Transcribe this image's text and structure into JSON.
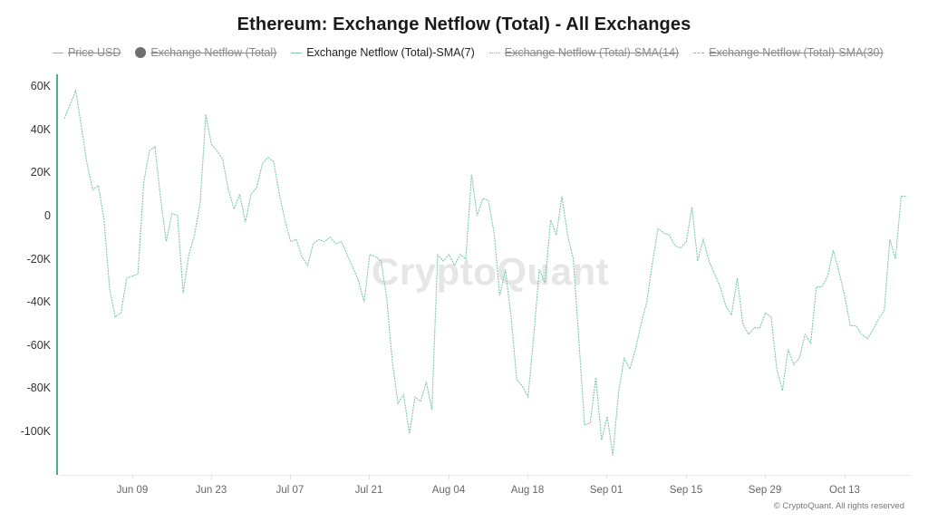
{
  "title": "Ethereum: Exchange Netflow (Total) - All Exchanges",
  "legend": [
    {
      "label": "Price USD",
      "state": "hidden",
      "marker": "line"
    },
    {
      "label": "Exchange Netflow (Total)",
      "state": "hidden",
      "marker": "dot"
    },
    {
      "label": "Exchange Netflow (Total)-SMA(7)",
      "state": "visible",
      "marker": "line",
      "color": "#7cc7ad"
    },
    {
      "label": "Exchange Netflow (Total)-SMA(14)",
      "state": "hidden",
      "marker": "dotted"
    },
    {
      "label": "Exchange Netflow (Total)-SMA(30)",
      "state": "hidden",
      "marker": "dashed"
    }
  ],
  "y_axis": {
    "ticks": [
      "60K",
      "40K",
      "20K",
      "0",
      "-20K",
      "-40K",
      "-60K",
      "-80K",
      "-100K"
    ]
  },
  "x_axis": {
    "ticks": [
      "Jun 09",
      "Jun 23",
      "Jul 07",
      "Jul 21",
      "Aug 04",
      "Aug 18",
      "Sep 01",
      "Sep 15",
      "Sep 29",
      "Oct 13"
    ]
  },
  "watermark": "CryptoQuant",
  "copyright": "© CryptoQuant. All rights reserved",
  "colors": {
    "series": "#7cc7ad",
    "axis": "#4caf8c"
  },
  "chart_data": {
    "type": "line",
    "title": "Ethereum: Exchange Netflow (Total) - All Exchanges",
    "xlabel": "",
    "ylabel": "",
    "ylim": [
      -120000,
      65000
    ],
    "grid": false,
    "legend_position": "top",
    "x_tick_labels": [
      "Jun 09",
      "Jun 23",
      "Jul 07",
      "Jul 21",
      "Aug 04",
      "Aug 18",
      "Sep 01",
      "Sep 15",
      "Sep 29",
      "Oct 13"
    ],
    "series": [
      {
        "name": "Exchange Netflow (Total)-SMA(7)",
        "color": "#7cc7ad",
        "points": [
          [
            "May 28",
            45000
          ],
          [
            "May 30",
            58000
          ],
          [
            "Jun 01",
            24000
          ],
          [
            "Jun 02",
            12000
          ],
          [
            "Jun 03",
            14000
          ],
          [
            "Jun 04",
            -2000
          ],
          [
            "Jun 05",
            -34000
          ],
          [
            "Jun 06",
            -47000
          ],
          [
            "Jun 07",
            -45000
          ],
          [
            "Jun 08",
            -29000
          ],
          [
            "Jun 10",
            -27000
          ],
          [
            "Jun 11",
            15000
          ],
          [
            "Jun 12",
            30000
          ],
          [
            "Jun 13",
            32000
          ],
          [
            "Jun 14",
            8000
          ],
          [
            "Jun 15",
            -12000
          ],
          [
            "Jun 16",
            1000
          ],
          [
            "Jun 17",
            0
          ],
          [
            "Jun 18",
            -36000
          ],
          [
            "Jun 19",
            -18000
          ],
          [
            "Jun 20",
            -9000
          ],
          [
            "Jun 21",
            6000
          ],
          [
            "Jun 22",
            47000
          ],
          [
            "Jun 23",
            33000
          ],
          [
            "Jun 24",
            30000
          ],
          [
            "Jun 25",
            26000
          ],
          [
            "Jun 26",
            12000
          ],
          [
            "Jun 27",
            3000
          ],
          [
            "Jun 28",
            10000
          ],
          [
            "Jun 29",
            -3000
          ],
          [
            "Jun 30",
            10000
          ],
          [
            "Jul 01",
            13000
          ],
          [
            "Jul 02",
            24000
          ],
          [
            "Jul 03",
            27000
          ],
          [
            "Jul 04",
            25000
          ],
          [
            "Jul 05",
            10000
          ],
          [
            "Jul 06",
            -2000
          ],
          [
            "Jul 07",
            -12000
          ],
          [
            "Jul 08",
            -11000
          ],
          [
            "Jul 09",
            -19000
          ],
          [
            "Jul 10",
            -23000
          ],
          [
            "Jul 11",
            -13000
          ],
          [
            "Jul 12",
            -11000
          ],
          [
            "Jul 13",
            -12000
          ],
          [
            "Jul 14",
            -10000
          ],
          [
            "Jul 15",
            -13000
          ],
          [
            "Jul 16",
            -12000
          ],
          [
            "Jul 17",
            -18000
          ],
          [
            "Jul 18",
            -24000
          ],
          [
            "Jul 19",
            -30000
          ],
          [
            "Jul 20",
            -40000
          ],
          [
            "Jul 21",
            -18000
          ],
          [
            "Jul 22",
            -19000
          ],
          [
            "Jul 23",
            -21000
          ],
          [
            "Jul 24",
            -38000
          ],
          [
            "Jul 25",
            -68000
          ],
          [
            "Jul 26",
            -87000
          ],
          [
            "Jul 27",
            -83000
          ],
          [
            "Jul 28",
            -101000
          ],
          [
            "Jul 29",
            -84000
          ],
          [
            "Jul 30",
            -86000
          ],
          [
            "Jul 31",
            -77000
          ],
          [
            "Aug 01",
            -90000
          ],
          [
            "Aug 02",
            -18000
          ],
          [
            "Aug 03",
            -21000
          ],
          [
            "Aug 04",
            -18000
          ],
          [
            "Aug 05",
            -23000
          ],
          [
            "Aug 06",
            -18000
          ],
          [
            "Aug 07",
            -20000
          ],
          [
            "Aug 08",
            19000
          ],
          [
            "Aug 09",
            0
          ],
          [
            "Aug 10",
            8000
          ],
          [
            "Aug 11",
            7000
          ],
          [
            "Aug 12",
            -8000
          ],
          [
            "Aug 13",
            -37000
          ],
          [
            "Aug 14",
            -25000
          ],
          [
            "Aug 15",
            -47000
          ],
          [
            "Aug 16",
            -76000
          ],
          [
            "Aug 17",
            -79000
          ],
          [
            "Aug 18",
            -84000
          ],
          [
            "Aug 19",
            -56000
          ],
          [
            "Aug 20",
            -25000
          ],
          [
            "Aug 21",
            -31000
          ],
          [
            "Aug 22",
            -2000
          ],
          [
            "Aug 23",
            -9000
          ],
          [
            "Aug 24",
            9000
          ],
          [
            "Aug 25",
            -9000
          ],
          [
            "Aug 26",
            -20000
          ],
          [
            "Aug 27",
            -58000
          ],
          [
            "Aug 28",
            -97000
          ],
          [
            "Aug 29",
            -96000
          ],
          [
            "Aug 30",
            -75000
          ],
          [
            "Aug 31",
            -104000
          ],
          [
            "Sep 01",
            -93000
          ],
          [
            "Sep 02",
            -111000
          ],
          [
            "Sep 03",
            -82000
          ],
          [
            "Sep 04",
            -66000
          ],
          [
            "Sep 05",
            -71000
          ],
          [
            "Sep 06",
            -62000
          ],
          [
            "Sep 07",
            -50000
          ],
          [
            "Sep 08",
            -40000
          ],
          [
            "Sep 09",
            -22000
          ],
          [
            "Sep 10",
            -6000
          ],
          [
            "Sep 11",
            -8000
          ],
          [
            "Sep 12",
            -9000
          ],
          [
            "Sep 13",
            -14000
          ],
          [
            "Sep 14",
            -15000
          ],
          [
            "Sep 15",
            -12000
          ],
          [
            "Sep 16",
            4000
          ],
          [
            "Sep 17",
            -21000
          ],
          [
            "Sep 18",
            -11000
          ],
          [
            "Sep 19",
            -21000
          ],
          [
            "Sep 20",
            -27000
          ],
          [
            "Sep 21",
            -33000
          ],
          [
            "Sep 22",
            -42000
          ],
          [
            "Sep 23",
            -46000
          ],
          [
            "Sep 24",
            -29000
          ],
          [
            "Sep 25",
            -50000
          ],
          [
            "Sep 26",
            -55000
          ],
          [
            "Sep 27",
            -52000
          ],
          [
            "Sep 28",
            -52000
          ],
          [
            "Sep 29",
            -45000
          ],
          [
            "Sep 30",
            -47000
          ],
          [
            "Oct 01",
            -71000
          ],
          [
            "Oct 02",
            -81000
          ],
          [
            "Oct 03",
            -62000
          ],
          [
            "Oct 04",
            -69000
          ],
          [
            "Oct 05",
            -66000
          ],
          [
            "Oct 06",
            -55000
          ],
          [
            "Oct 07",
            -59000
          ],
          [
            "Oct 08",
            -33000
          ],
          [
            "Oct 09",
            -33000
          ],
          [
            "Oct 10",
            -28000
          ],
          [
            "Oct 11",
            -16000
          ],
          [
            "Oct 12",
            -26000
          ],
          [
            "Oct 13",
            -37000
          ],
          [
            "Oct 14",
            -51000
          ],
          [
            "Oct 15",
            -51000
          ],
          [
            "Oct 16",
            -55000
          ],
          [
            "Oct 17",
            -57000
          ],
          [
            "Oct 18",
            -53000
          ],
          [
            "Oct 19",
            -48000
          ],
          [
            "Oct 20",
            -44000
          ],
          [
            "Oct 21",
            -11000
          ],
          [
            "Oct 22",
            -20000
          ],
          [
            "Oct 23",
            9000
          ],
          [
            "Oct 24",
            9000
          ]
        ]
      }
    ]
  }
}
